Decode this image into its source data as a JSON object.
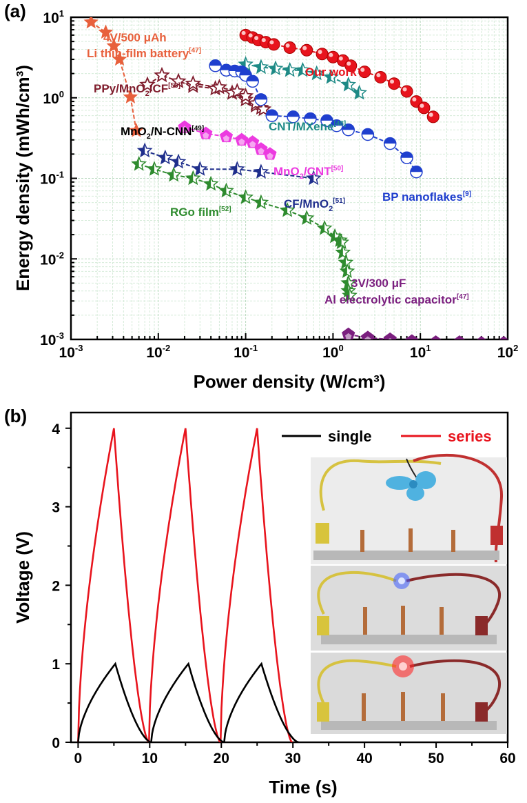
{
  "chart_data": [
    {
      "panel_label": "(a)",
      "type": "scatter",
      "x_scale": "log",
      "y_scale": "log",
      "xlabel": "Power density (W/cm³)",
      "ylabel": "Energy density (mWh/cm³)",
      "xlim": [
        0.001,
        100
      ],
      "ylim": [
        0.001,
        10
      ],
      "grid": true,
      "x_tick_labels": [
        {
          "base": "10",
          "exp": "-3",
          "value": 0.001
        },
        {
          "base": "10",
          "exp": "-2",
          "value": 0.01
        },
        {
          "base": "10",
          "exp": "-1",
          "value": 0.1
        },
        {
          "base": "10",
          "exp": "0",
          "value": 1
        },
        {
          "base": "10",
          "exp": "1",
          "value": 10
        },
        {
          "base": "10",
          "exp": "2",
          "value": 100
        }
      ],
      "y_tick_labels": [
        {
          "base": "10",
          "exp": "-3",
          "value": 0.001
        },
        {
          "base": "10",
          "exp": "-2",
          "value": 0.01
        },
        {
          "base": "10",
          "exp": "-1",
          "value": 0.1
        },
        {
          "base": "10",
          "exp": "0",
          "value": 1
        },
        {
          "base": "10",
          "exp": "1",
          "value": 10
        }
      ],
      "series": [
        {
          "name": "Li thin-film battery",
          "label_line1": "4V/500 μAh",
          "label_line2": "Li thin-film battery",
          "ref": "[47]",
          "color": "#e8603c",
          "marker": "star-filled",
          "x": [
            0.0017,
            0.0025,
            0.0031,
            0.0036,
            0.0048,
            0.0056
          ],
          "y": [
            8.7,
            6.5,
            4.4,
            3.0,
            1.02,
            0.39
          ]
        },
        {
          "name": "PPy/MnO2/CF",
          "ref": "[53]",
          "color": "#7f1c2c",
          "marker": "star-open",
          "x": [
            0.0075,
            0.011,
            0.017,
            0.025,
            0.045,
            0.07,
            0.1,
            0.13,
            0.15
          ],
          "y": [
            1.45,
            1.9,
            1.6,
            1.4,
            1.3,
            1.15,
            0.95,
            0.8,
            0.75
          ]
        },
        {
          "name": "MnO2/N-CNN",
          "ref": "[49]",
          "color": "#7f1c2c",
          "marker": "star-open",
          "x": [
            0.025,
            0.05,
            0.08,
            0.1,
            0.13,
            0.16
          ],
          "y": [
            1.5,
            1.35,
            1.2,
            1.05,
            0.85,
            0.72
          ]
        },
        {
          "name": "Our work",
          "ref": "",
          "color": "#e8141d",
          "marker": "circle-shaded",
          "x": [
            0.1,
            0.12,
            0.14,
            0.17,
            0.21,
            0.32,
            0.5,
            0.75,
            1.0,
            1.3,
            1.6,
            2.3,
            3.5,
            5.0,
            7.0,
            9.0,
            11.0,
            14.0
          ],
          "y": [
            6.0,
            5.6,
            5.2,
            4.9,
            4.6,
            4.2,
            3.9,
            3.5,
            3.2,
            2.9,
            2.5,
            2.1,
            1.8,
            1.5,
            1.2,
            0.9,
            0.75,
            0.58
          ]
        },
        {
          "name": "CNT/MXene",
          "ref": "[48]",
          "color": "#1e8a86",
          "marker": "star-half",
          "x": [
            0.1,
            0.15,
            0.22,
            0.32,
            0.45,
            0.65,
            0.95,
            1.5,
            2.0
          ],
          "y": [
            2.6,
            2.4,
            2.3,
            2.2,
            2.2,
            2.0,
            1.8,
            1.45,
            1.15
          ]
        },
        {
          "name": "BP nanoflakes",
          "ref": "[9]",
          "color": "#1f3fce",
          "marker": "circle-half",
          "x": [
            0.045,
            0.06,
            0.075,
            0.09,
            0.1,
            0.12,
            0.15,
            0.2,
            0.35,
            0.55,
            0.85,
            1.1,
            1.5,
            2.5,
            4.5,
            7.0,
            9.0
          ],
          "y": [
            2.5,
            2.2,
            2.15,
            2.1,
            1.9,
            1.6,
            0.95,
            0.6,
            0.58,
            0.55,
            0.52,
            0.45,
            0.4,
            0.35,
            0.27,
            0.18,
            0.12
          ]
        },
        {
          "name": "MnO2/CNT",
          "ref": "[50]",
          "color": "#ec3be0",
          "marker": "pentagon-shaded",
          "x": [
            0.02,
            0.035,
            0.06,
            0.09,
            0.12,
            0.15,
            0.19
          ],
          "y": [
            0.43,
            0.36,
            0.33,
            0.3,
            0.28,
            0.23,
            0.2
          ]
        },
        {
          "name": "CF/MnO2",
          "ref": "[51]",
          "color": "#1f2f8c",
          "marker": "star-half",
          "x": [
            0.007,
            0.012,
            0.017,
            0.03,
            0.08,
            0.15,
            0.6
          ],
          "y": [
            0.22,
            0.18,
            0.16,
            0.13,
            0.13,
            0.12,
            0.1
          ]
        },
        {
          "name": "RGo film",
          "ref": "[52]",
          "color": "#2e8b2e",
          "marker": "star-half",
          "x": [
            0.006,
            0.009,
            0.015,
            0.025,
            0.04,
            0.06,
            0.1,
            0.15,
            0.3,
            0.5,
            0.8,
            1.05,
            1.2,
            1.25,
            1.3,
            1.4,
            1.45,
            1.5,
            1.5,
            1.55
          ],
          "y": [
            0.15,
            0.13,
            0.11,
            0.1,
            0.085,
            0.07,
            0.058,
            0.05,
            0.04,
            0.032,
            0.024,
            0.019,
            0.017,
            0.016,
            0.012,
            0.009,
            0.007,
            0.005,
            0.004,
            0.0035
          ]
        },
        {
          "name": "Al electrolytic capacitor",
          "label_line1": "3V/300 μF",
          "label_line2": "Al electrolytic capacitor",
          "ref": "[47]",
          "color": "#7b1f7f",
          "marker": "pentagon-shaded",
          "x": [
            1.5,
            2.5,
            4.5,
            8.0,
            15.0,
            28.0,
            50.0,
            90.0
          ],
          "y": [
            0.00115,
            0.00105,
            0.001,
            0.00095,
            0.00092,
            0.00092,
            0.0009,
            0.0009
          ]
        }
      ]
    },
    {
      "panel_label": "(b)",
      "type": "line",
      "xlabel": "Time (s)",
      "ylabel": "Voltage (V)",
      "xlim": [
        -1,
        60
      ],
      "ylim": [
        0,
        4.2
      ],
      "xticks": [
        0,
        10,
        20,
        30,
        40,
        50,
        60
      ],
      "yticks": [
        0,
        1,
        2,
        3,
        4
      ],
      "x_tick_labels": [
        "0",
        "10",
        "20",
        "30",
        "40",
        "50",
        "60"
      ],
      "y_tick_labels": [
        "0",
        "1",
        "2",
        "3",
        "4"
      ],
      "legend_position": "top-right",
      "series": [
        {
          "name": "single",
          "color": "#000000",
          "cycles": [
            {
              "t_start": 0,
              "t_peak": 5.2,
              "t_end": 10.2
            },
            {
              "t_start": 10.2,
              "t_peak": 15.4,
              "t_end": 20.4
            },
            {
              "t_start": 20.4,
              "t_peak": 25.6,
              "t_end": 30.8
            }
          ],
          "peak": 1.0
        },
        {
          "name": "series",
          "color": "#e8141d",
          "cycles": [
            {
              "t_start": 0,
              "t_peak": 5.0,
              "t_end": 9.9
            },
            {
              "t_start": 9.9,
              "t_peak": 15.0,
              "t_end": 19.9
            },
            {
              "t_start": 19.9,
              "t_peak": 25.0,
              "t_end": 29.9
            }
          ],
          "peak": 4.0
        }
      ]
    }
  ]
}
